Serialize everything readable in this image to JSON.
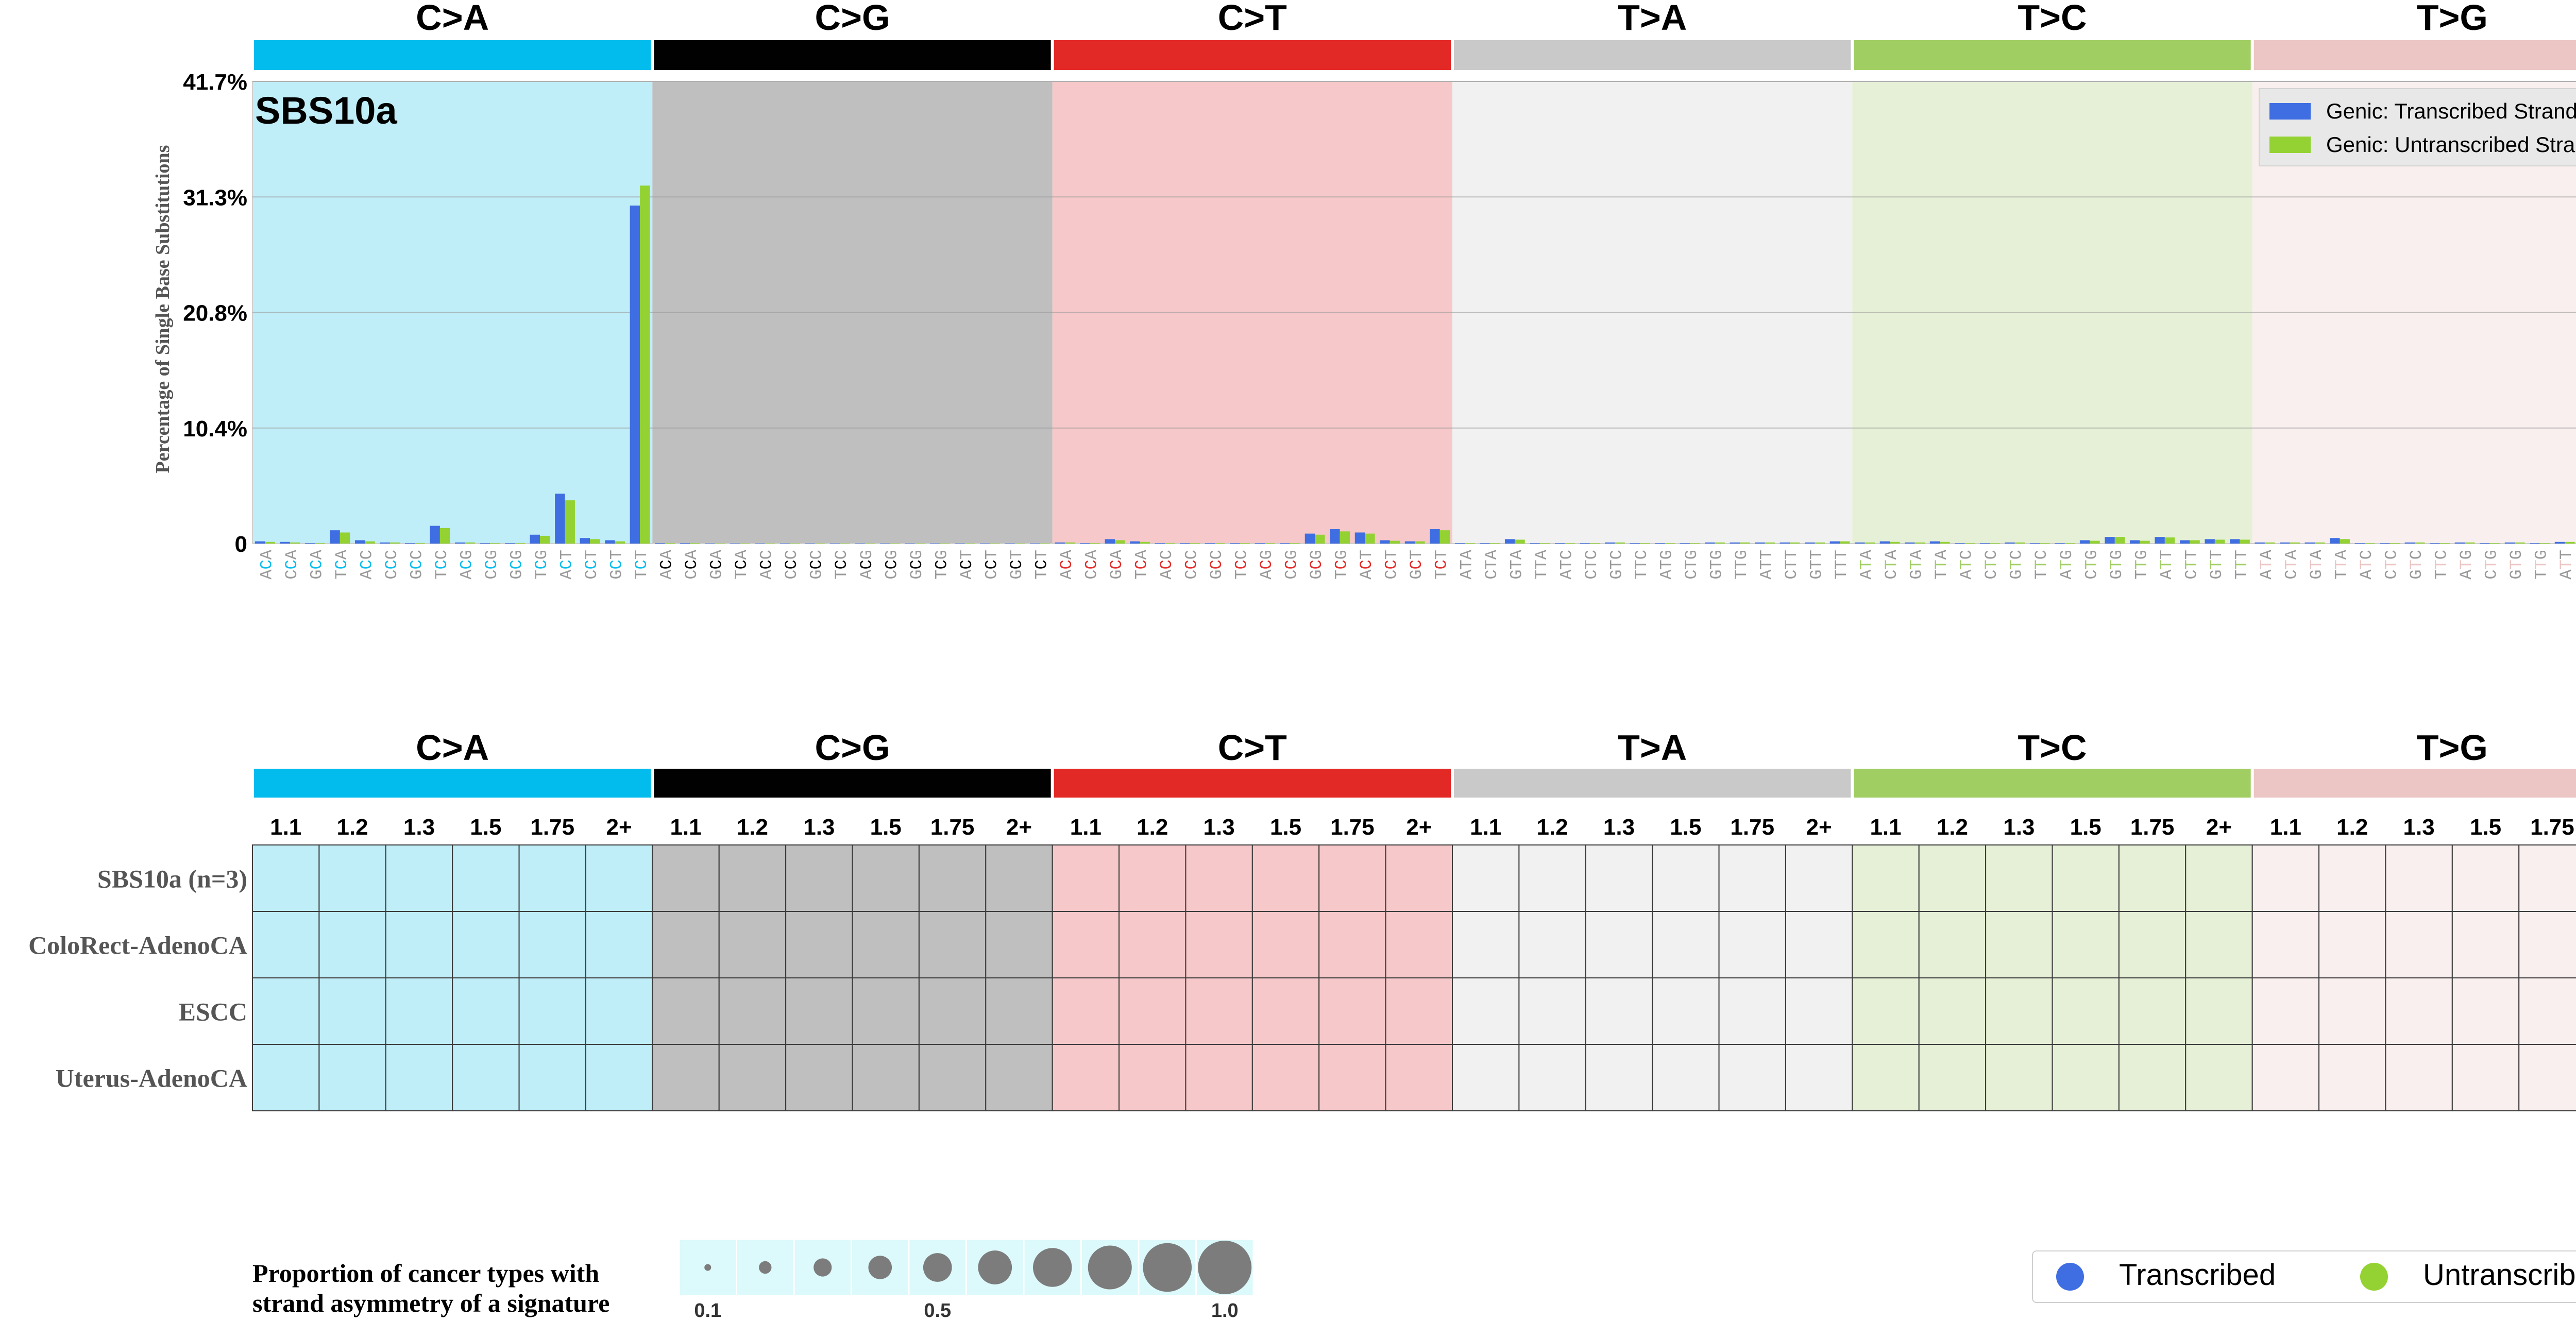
{
  "chart_data": {
    "type": "bar",
    "title": "SBS10a",
    "ylabel": "Percentage of Single Base Substitutions",
    "yticks": [
      "0",
      "10.4%",
      "20.8%",
      "31.3%",
      "41.7%"
    ],
    "ylim": [
      0,
      41.7
    ],
    "grid": true,
    "legend_position": "top-right",
    "mutation_types": [
      {
        "label": "C>A",
        "color": "#03bcee",
        "bg": "#bfedf8",
        "ref": "C"
      },
      {
        "label": "C>G",
        "color": "#010101",
        "bg": "#bfbfbf",
        "ref": "C"
      },
      {
        "label": "C>T",
        "color": "#e32926",
        "bg": "#f6c8c9",
        "ref": "C"
      },
      {
        "label": "T>A",
        "color": "#cac9c9",
        "bg": "#f1f1f1",
        "ref": "T"
      },
      {
        "label": "T>C",
        "color": "#a1ce63",
        "bg": "#e6f0d7",
        "ref": "T"
      },
      {
        "label": "T>G",
        "color": "#ebc6c4",
        "bg": "#f8efee",
        "ref": "T"
      }
    ],
    "contexts": [
      "A_A",
      "A_C",
      "A_G",
      "A_T",
      "C_A",
      "C_C",
      "C_G",
      "C_T",
      "G_A",
      "G_C",
      "G_G",
      "G_T",
      "T_A",
      "T_C",
      "T_G",
      "T_T"
    ],
    "series": [
      {
        "name": "Genic: Transcribed Strand",
        "color": "#3f6ee2",
        "values": [
          [
            0.2,
            0.15,
            0.05,
            1.2,
            0.3,
            0.1,
            0.05,
            1.6,
            0.1,
            0.05,
            0.05,
            0.8,
            4.5,
            0.5,
            0.3,
            30.5
          ],
          [
            0.05,
            0.05,
            0.03,
            0.03,
            0.03,
            0.03,
            0.03,
            0.03,
            0.03,
            0.03,
            0.03,
            0.03,
            0.03,
            0.03,
            0.03,
            0.03
          ],
          [
            0.1,
            0.05,
            0.4,
            0.2,
            0.05,
            0.05,
            0.05,
            0.05,
            0.05,
            0.05,
            0.9,
            1.3,
            1.0,
            0.3,
            0.2,
            1.3
          ],
          [
            0.05,
            0.05,
            0.4,
            0.05,
            0.05,
            0.05,
            0.1,
            0.05,
            0.05,
            0.05,
            0.1,
            0.1,
            0.1,
            0.1,
            0.1,
            0.2
          ],
          [
            0.1,
            0.2,
            0.1,
            0.2,
            0.05,
            0.05,
            0.1,
            0.05,
            0.05,
            0.3,
            0.6,
            0.3,
            0.6,
            0.3,
            0.4,
            0.4
          ],
          [
            0.1,
            0.1,
            0.1,
            0.5,
            0.05,
            0.05,
            0.1,
            0.05,
            0.1,
            0.05,
            0.1,
            0.05,
            0.15,
            0.1,
            0.05,
            1.0
          ]
        ]
      },
      {
        "name": "Genic: Untranscribed Strand",
        "color": "#93d232",
        "values": [
          [
            0.15,
            0.1,
            0.05,
            1.0,
            0.2,
            0.1,
            0.05,
            1.4,
            0.1,
            0.05,
            0.05,
            0.7,
            3.9,
            0.4,
            0.2,
            32.3
          ],
          [
            0.05,
            0.05,
            0.03,
            0.03,
            0.03,
            0.03,
            0.03,
            0.03,
            0.03,
            0.03,
            0.03,
            0.03,
            0.03,
            0.03,
            0.03,
            0.03
          ],
          [
            0.1,
            0.05,
            0.3,
            0.15,
            0.05,
            0.05,
            0.05,
            0.05,
            0.05,
            0.05,
            0.8,
            1.1,
            0.9,
            0.25,
            0.2,
            1.2
          ],
          [
            0.05,
            0.05,
            0.35,
            0.05,
            0.05,
            0.05,
            0.1,
            0.05,
            0.05,
            0.05,
            0.1,
            0.1,
            0.1,
            0.1,
            0.1,
            0.2
          ],
          [
            0.1,
            0.15,
            0.1,
            0.15,
            0.05,
            0.05,
            0.1,
            0.05,
            0.05,
            0.25,
            0.6,
            0.25,
            0.55,
            0.3,
            0.35,
            0.35
          ],
          [
            0.1,
            0.1,
            0.1,
            0.4,
            0.05,
            0.05,
            0.1,
            0.05,
            0.1,
            0.05,
            0.1,
            0.05,
            0.15,
            0.1,
            0.05,
            1.1
          ]
        ]
      }
    ],
    "strand_table": {
      "column_labels": [
        "1.1",
        "1.2",
        "1.3",
        "1.5",
        "1.75",
        "2+"
      ],
      "rows": [
        "SBS10a (n=3)",
        "ColoRect-AdenoCA",
        "ESCC",
        "Uterus-AdenoCA"
      ]
    },
    "size_legend": {
      "title_lines": [
        "Proportion of cancer types with",
        "strand asymmetry of a signature"
      ],
      "tick_labels": [
        "0.1",
        "0.5",
        "1.0"
      ],
      "proportions": [
        0.1,
        0.2,
        0.3,
        0.4,
        0.5,
        0.6,
        0.7,
        0.8,
        0.9,
        1.0
      ],
      "circle_color": "#7c7c7c",
      "cell_color": "#dcf9fb"
    },
    "strand_legend": [
      {
        "name": "Transcribed",
        "color": "#3f6ee2"
      },
      {
        "name": "Untranscribed",
        "color": "#93d232"
      }
    ]
  }
}
